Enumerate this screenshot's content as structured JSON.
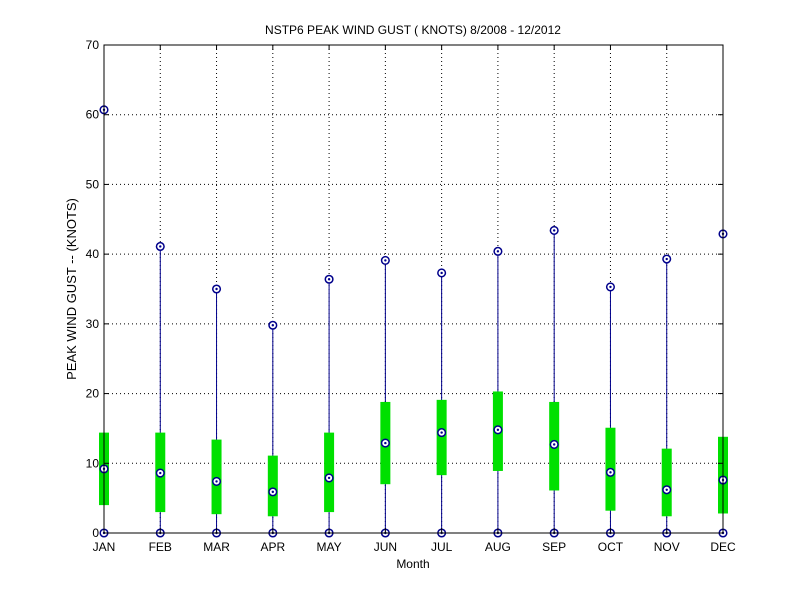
{
  "chart_data": {
    "type": "box",
    "title": "NSTP6  PEAK WIND GUST ( KNOTS) 8/2008 - 12/2012",
    "xlabel": "Month",
    "ylabel": "PEAK WIND GUST -- (KNOTS)",
    "ylim": [
      0,
      70
    ],
    "yticks": [
      0,
      10,
      20,
      30,
      40,
      50,
      60,
      70
    ],
    "grid": true,
    "categories": [
      "JAN",
      "FEB",
      "MAR",
      "APR",
      "MAY",
      "JUN",
      "JUL",
      "AUG",
      "SEP",
      "OCT",
      "NOV",
      "DEC"
    ],
    "series": [
      {
        "min": [
          0,
          0,
          0,
          0,
          0,
          0,
          0,
          0,
          0,
          0,
          0,
          0
        ],
        "q1": [
          4.0,
          3.0,
          2.7,
          2.4,
          3.0,
          7.0,
          8.3,
          8.9,
          6.1,
          3.2,
          2.4,
          2.8
        ],
        "median": [
          9.2,
          8.6,
          7.4,
          5.9,
          7.9,
          12.9,
          14.4,
          14.8,
          12.7,
          8.7,
          6.2,
          7.6
        ],
        "q3": [
          14.4,
          14.4,
          13.4,
          11.1,
          14.4,
          18.8,
          19.1,
          20.3,
          18.8,
          15.1,
          12.1,
          13.8
        ],
        "max": [
          60.7,
          41.1,
          35.0,
          29.8,
          36.4,
          39.1,
          37.3,
          40.4,
          43.4,
          35.3,
          39.3,
          42.9
        ]
      }
    ],
    "colors": {
      "box": "#00e000",
      "whisker": "#00008b",
      "marker": "#00008b",
      "grid": "#000000",
      "axis": "#000000"
    }
  }
}
